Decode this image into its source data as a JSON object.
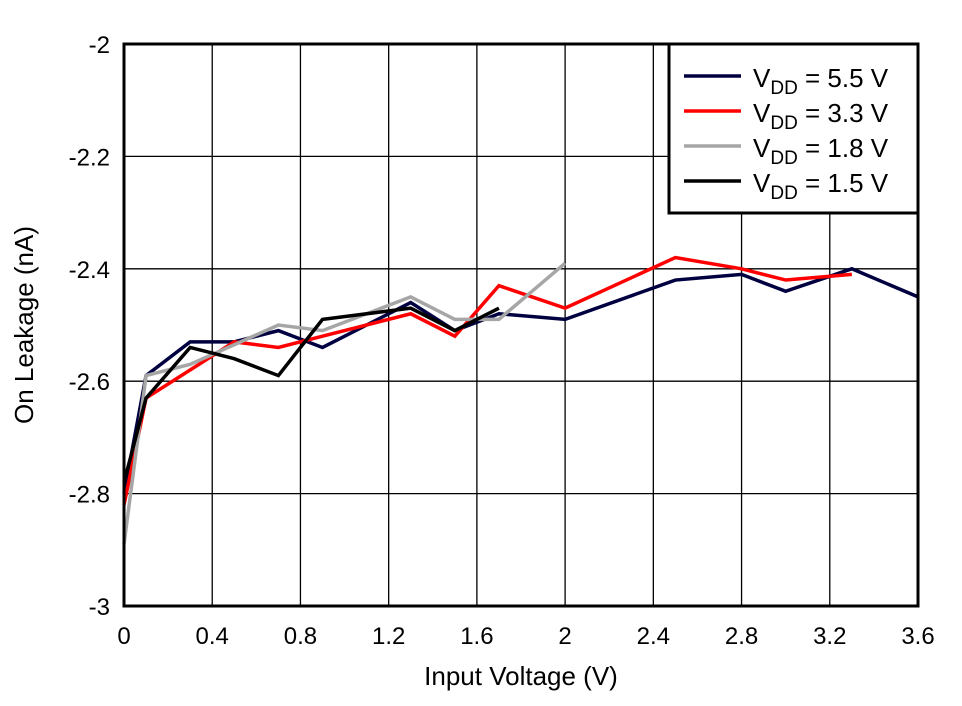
{
  "chart_data": {
    "type": "line",
    "title": "",
    "xlabel": "Input Voltage (V)",
    "ylabel": "On Leakage (nA)",
    "xlim": [
      0,
      3.6
    ],
    "ylim": [
      -3,
      -2
    ],
    "xticks": [
      "0",
      "0.4",
      "0.8",
      "1.2",
      "1.6",
      "2",
      "2.4",
      "2.8",
      "3.2",
      "3.6"
    ],
    "yticks": [
      "-3",
      "-2.8",
      "-2.6",
      "-2.4",
      "-2.2",
      "-2"
    ],
    "grid": true,
    "legend_position": "top-right",
    "series": [
      {
        "name_main": "V",
        "name_sub": "DD",
        "name_rest": " = 5.5 V",
        "color": "#000040",
        "x": [
          0,
          0.1,
          0.3,
          0.5,
          0.7,
          0.9,
          1.3,
          1.5,
          1.7,
          2,
          2.5,
          2.8,
          3,
          3.3,
          3.6
        ],
        "y": [
          -2.8,
          -2.59,
          -2.53,
          -2.53,
          -2.51,
          -2.54,
          -2.46,
          -2.51,
          -2.48,
          -2.49,
          -2.42,
          -2.41,
          -2.44,
          -2.4,
          -2.45
        ]
      },
      {
        "name_main": "V",
        "name_sub": "DD",
        "name_rest": " = 3.3 V",
        "color": "#ff0000",
        "x": [
          0,
          0.1,
          0.5,
          0.7,
          0.9,
          1.3,
          1.5,
          1.7,
          2,
          2.5,
          2.8,
          3,
          3.3
        ],
        "y": [
          -2.82,
          -2.63,
          -2.53,
          -2.54,
          -2.52,
          -2.48,
          -2.52,
          -2.43,
          -2.47,
          -2.38,
          -2.4,
          -2.42,
          -2.41
        ]
      },
      {
        "name_main": "V",
        "name_sub": "DD",
        "name_rest": " = 1.8 V",
        "color": "#a6a6a6",
        "x": [
          0,
          0.1,
          0.3,
          0.7,
          0.9,
          1.3,
          1.5,
          1.7,
          2
        ],
        "y": [
          -2.89,
          -2.59,
          -2.57,
          -2.5,
          -2.51,
          -2.45,
          -2.49,
          -2.49,
          -2.39
        ]
      },
      {
        "name_main": "V",
        "name_sub": "DD",
        "name_rest": " = 1.5 V",
        "color": "#000000",
        "x": [
          0,
          0.1,
          0.3,
          0.5,
          0.7,
          0.9,
          1.3,
          1.5,
          1.7
        ],
        "y": [
          -2.78,
          -2.63,
          -2.54,
          -2.56,
          -2.59,
          -2.49,
          -2.47,
          -2.51,
          -2.47
        ]
      }
    ]
  }
}
